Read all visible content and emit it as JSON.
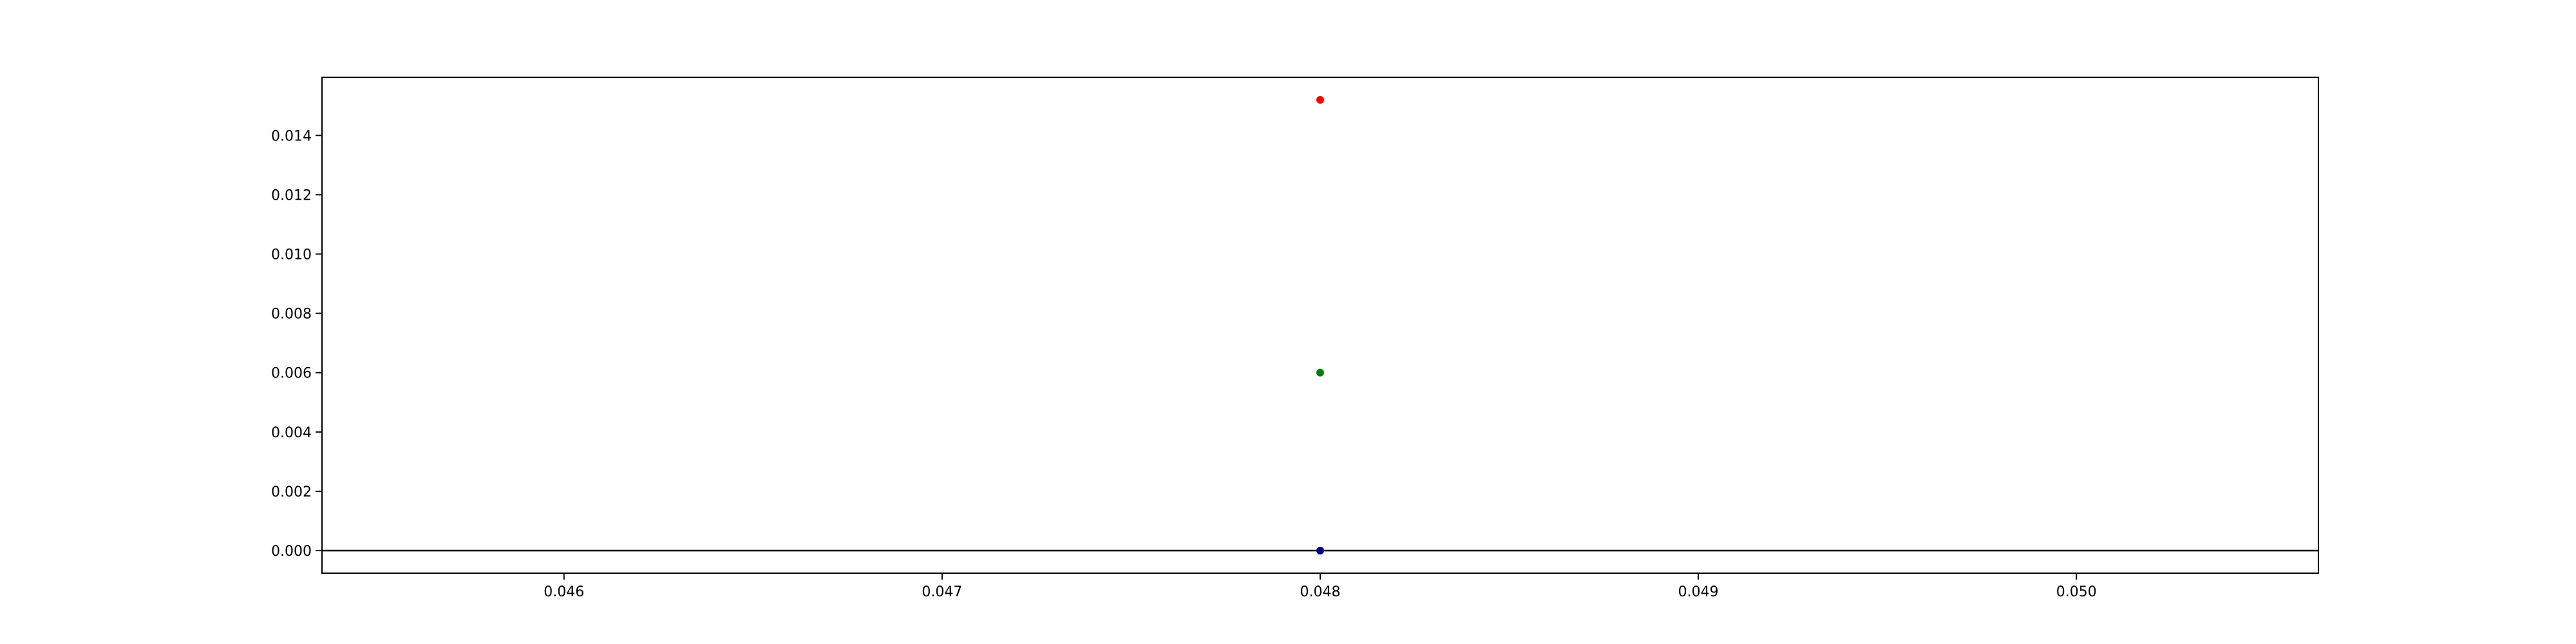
{
  "chart_data": {
    "type": "scatter",
    "title": "",
    "xlabel": "",
    "ylabel": "",
    "xlim": [
      0.04536,
      0.05064
    ],
    "ylim": [
      -0.00076,
      0.01596
    ],
    "x_ticks": [
      "0.046",
      "0.047",
      "0.048",
      "0.049",
      "0.050"
    ],
    "x_tick_values": [
      0.046,
      0.047,
      0.048,
      0.049,
      0.05
    ],
    "y_ticks": [
      "0.000",
      "0.002",
      "0.004",
      "0.006",
      "0.008",
      "0.010",
      "0.012",
      "0.014"
    ],
    "y_tick_values": [
      0.0,
      0.002,
      0.004,
      0.006,
      0.008,
      0.01,
      0.012,
      0.014
    ],
    "grid": false,
    "legend": false,
    "hline": {
      "y": 0,
      "color": "#000000"
    },
    "series": [
      {
        "color": "#ff0000",
        "points": [
          {
            "x": 0.048,
            "y": 0.0152
          }
        ]
      },
      {
        "color": "#008000",
        "points": [
          {
            "x": 0.048,
            "y": 0.006
          }
        ]
      },
      {
        "color": "#00008b",
        "points": [
          {
            "x": 0.048,
            "y": 0.0
          }
        ]
      }
    ]
  }
}
